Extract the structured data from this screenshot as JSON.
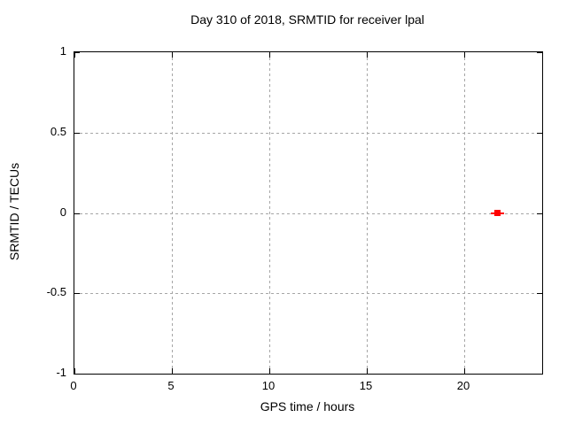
{
  "chart_data": {
    "type": "scatter",
    "title": "Day 310 of 2018, SRMTID for receiver lpal",
    "xlabel": "GPS time / hours",
    "ylabel": "SRMTID / TECUs",
    "xlim": [
      0,
      24
    ],
    "ylim": [
      -1,
      1
    ],
    "xticks": [
      0,
      5,
      10,
      15,
      20
    ],
    "yticks": [
      -1,
      -0.5,
      0,
      0.5,
      1
    ],
    "grid": true,
    "legend": "none",
    "series": [
      {
        "name": "SRMTID",
        "marker": "filled-square",
        "color": "#ff0000",
        "points": [
          {
            "x": 21.7,
            "y": 0.0,
            "xerr": 0.35
          }
        ]
      }
    ],
    "colors": {
      "background": "#ffffff",
      "frame": "#000000",
      "grid": "#a6a6a6",
      "text": "#000000",
      "point": "#ff0000"
    }
  }
}
